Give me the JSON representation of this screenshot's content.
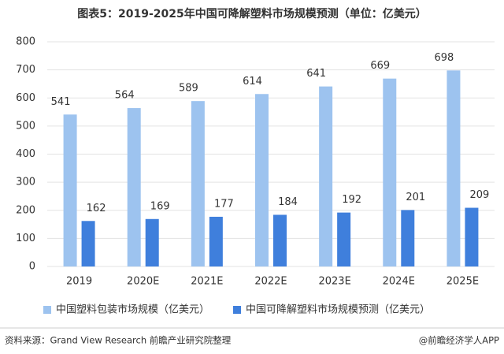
{
  "chart_data": {
    "type": "bar",
    "title": "图表5：2019-2025年中国可降解塑料市场规模预测（单位：亿美元）",
    "categories": [
      "2019",
      "2020E",
      "2021E",
      "2022E",
      "2023E",
      "2024E",
      "2025E"
    ],
    "series": [
      {
        "name": "中国塑料包装市场规模（亿美元）",
        "color": "#9dc3ef",
        "values": [
          541,
          564,
          589,
          614,
          641,
          669,
          698
        ]
      },
      {
        "name": "中国可降解塑料市场规模预测（亿美元）",
        "color": "#3f7fdc",
        "values": [
          162,
          169,
          177,
          184,
          192,
          201,
          209
        ]
      }
    ],
    "ylim": [
      0,
      800
    ],
    "yticks": [
      0,
      100,
      200,
      300,
      400,
      500,
      600,
      700,
      800
    ],
    "grid": true,
    "legend": "bottom",
    "source": "资料来源：Grand View Research 前瞻产业研究院整理",
    "credit": "@前瞻经济学人APP"
  }
}
